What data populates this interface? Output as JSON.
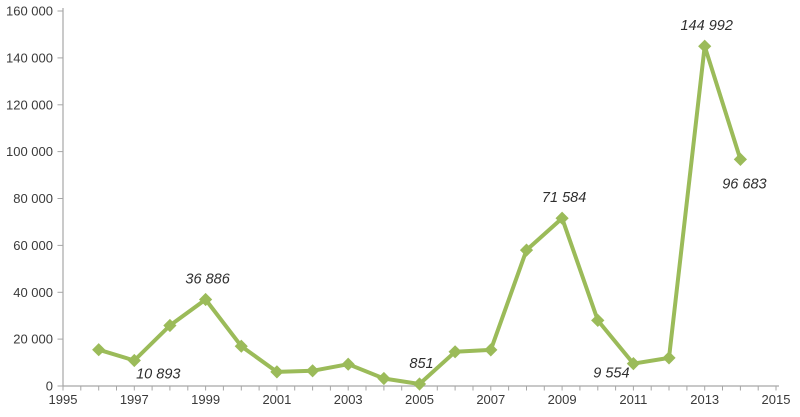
{
  "chart_data": {
    "type": "line",
    "title": "",
    "xlabel": "",
    "ylabel": "",
    "legend": "none",
    "grid": false,
    "x_axis": {
      "min": 1995,
      "max": 2015,
      "tick_interval": 0.5,
      "label_interval": 2,
      "labels": [
        "1995",
        "1997",
        "1999",
        "2001",
        "2003",
        "2005",
        "2007",
        "2009",
        "2011",
        "2013",
        "2015"
      ]
    },
    "y_axis": {
      "min": 0,
      "max": 160000,
      "tick_interval": 20000,
      "labels": [
        {
          "value": 0,
          "label": "0"
        },
        {
          "value": 20000,
          "label": "20 000"
        },
        {
          "value": 40000,
          "label": "40 000"
        },
        {
          "value": 60000,
          "label": "60 000"
        },
        {
          "value": 80000,
          "label": "80 000"
        },
        {
          "value": 100000,
          "label": "100 000"
        },
        {
          "value": 120000,
          "label": "120 000"
        },
        {
          "value": 140000,
          "label": "140 000"
        },
        {
          "value": 160000,
          "label": "160 000"
        }
      ]
    },
    "series": [
      {
        "name": "series-1",
        "points": [
          {
            "year": 1996,
            "value": 15500
          },
          {
            "year": 1997,
            "value": 10893,
            "label": "10 893",
            "label_pos": "below-right"
          },
          {
            "year": 1998,
            "value": 25800
          },
          {
            "year": 1999,
            "value": 36886,
            "label": "36 886",
            "label_pos": "above"
          },
          {
            "year": 2000,
            "value": 17000
          },
          {
            "year": 2001,
            "value": 6000
          },
          {
            "year": 2002,
            "value": 6500
          },
          {
            "year": 2003,
            "value": 9300
          },
          {
            "year": 2004,
            "value": 3200
          },
          {
            "year": 2005,
            "value": 851,
            "label": "851",
            "label_pos": "above"
          },
          {
            "year": 2006,
            "value": 14600
          },
          {
            "year": 2007,
            "value": 15400
          },
          {
            "year": 2008,
            "value": 58000
          },
          {
            "year": 2009,
            "value": 71584,
            "label": "71 584",
            "label_pos": "above"
          },
          {
            "year": 2010,
            "value": 28000
          },
          {
            "year": 2011,
            "value": 9554,
            "label": "9 554",
            "label_pos": "below-left"
          },
          {
            "year": 2012,
            "value": 12000
          },
          {
            "year": 2013,
            "value": 144992,
            "label": "144 992",
            "label_pos": "above"
          },
          {
            "year": 2014,
            "value": 96683,
            "label": "96 683",
            "label_pos": "below"
          }
        ]
      }
    ],
    "colors": {
      "line": "#9BBB59",
      "marker": "#9BBB59",
      "axis": "#A6A6A6",
      "axis_text": "#3A3A3A",
      "data_label_text": "#2E2E2E",
      "background": "#FFFFFF"
    }
  }
}
